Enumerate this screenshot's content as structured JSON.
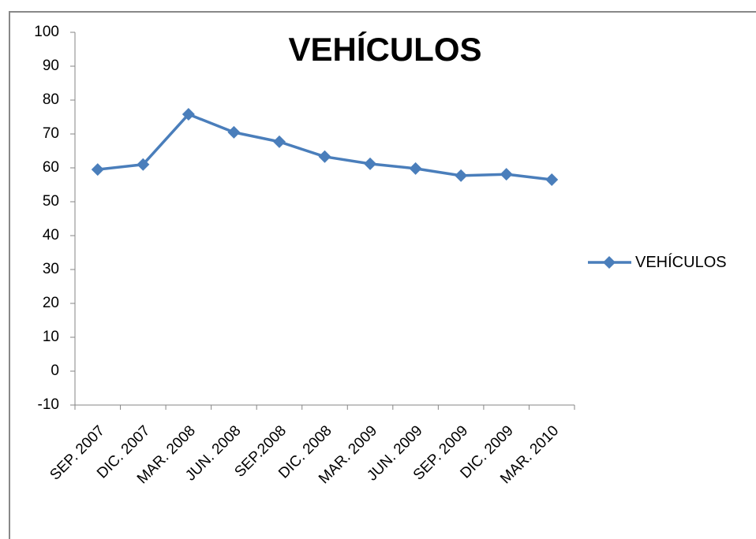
{
  "chart_data": {
    "type": "line",
    "title": "VEHÍCULOS",
    "categories": [
      "SEP. 2007",
      "DIC. 2007",
      "MAR. 2008",
      "JUN. 2008",
      "SEP.2008",
      "DIC. 2008",
      "MAR. 2009",
      "JUN. 2009",
      "SEP. 2009",
      "DIC. 2009",
      "MAR. 2010"
    ],
    "series": [
      {
        "name": "VEHÍCULOS",
        "color": "#4a7ebb",
        "values": [
          59.5,
          61,
          75.8,
          70.5,
          67.7,
          63.3,
          61.2,
          59.8,
          57.7,
          58.1,
          56.5
        ]
      }
    ],
    "ylim": [
      -10,
      100
    ],
    "yticks": [
      -10,
      0,
      10,
      20,
      30,
      40,
      50,
      60,
      70,
      80,
      90,
      100
    ],
    "grid": false,
    "legend": "right"
  }
}
